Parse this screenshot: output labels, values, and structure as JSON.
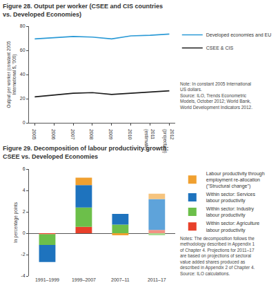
{
  "chart_data": [
    {
      "type": "line",
      "title": "Figure 28. Output per worker (CSEE and CIS countries vs. Developed Economies)",
      "y_label": "Output per worker (constant 2005 International $, '000)",
      "categories": [
        "2005",
        "2006",
        "2007",
        "2008",
        "2009",
        "2010",
        "2011 (estimate)",
        "2012 (projection)"
      ],
      "series": [
        {
          "name": "Developed economies and EU",
          "color": "#2b9ad6",
          "values": [
            69.5,
            70.5,
            71.5,
            71,
            69.5,
            72,
            72.5,
            73.5
          ]
        },
        {
          "name": "CSEE & CIS",
          "color": "#1c1c1c",
          "values": [
            21.5,
            23,
            24.5,
            25,
            23.5,
            24.5,
            25.5,
            26.5
          ]
        }
      ],
      "ylim": [
        0,
        80
      ],
      "yticks": [
        0,
        20,
        40,
        60,
        80
      ],
      "grid": false,
      "legend": "top right",
      "annotations": [
        "Note: In constant 2005 International US dollars.",
        "Source: ILO, Trends Econometric Models, October 2012; World Bank, World Development Indicators 2012."
      ]
    },
    {
      "type": "bar",
      "stacked": true,
      "title": "Figure 29. Decomposition of labour productivity growth: CSEE vs. Developed Economies",
      "y_label": "In percentage points",
      "categories": [
        "1991–1999",
        "1999–2007",
        "2007–11",
        "2011–17"
      ],
      "series": [
        {
          "name": "Within sector: Agriculture labour productivity",
          "colors": [
            "#e8402a",
            "#e8402a",
            "#e8402a",
            "#f29283"
          ],
          "values": [
            -0.1,
            0.6,
            0,
            0.3
          ]
        },
        {
          "name": "Within sector: Industry labour productivity",
          "colors": [
            "#6cbf4a",
            "#6cbf4a",
            "#6cbf4a",
            "#a9db93"
          ],
          "values": [
            -1.0,
            1.8,
            0.8,
            -0.2
          ]
        },
        {
          "name": "Within sector: Services labour productivity",
          "colors": [
            "#1e73be",
            "#1e73be",
            "#1e73be",
            "#5ea3da"
          ],
          "values": [
            -1.6,
            2.1,
            1.0,
            2.9
          ]
        },
        {
          "name": "Labour productivity through employment re-allocation (\"Structural change\")",
          "colors": [
            "#f0a030",
            "#f0a030",
            "#f0a030",
            "#f6c47e"
          ],
          "values": [
            0,
            0.7,
            -0.2,
            0.5
          ]
        }
      ],
      "ylim": [
        -4,
        6
      ],
      "yticks": [
        -4,
        -2,
        0,
        2,
        4,
        6
      ],
      "grid": false,
      "legend": "top right",
      "annotations": [
        "Notes: The decomposition follows the methodology described in Appendix 1 of Chapter 4. Projections for 2011–17 are based on projections of sectoral value added shares produced as described in Appendix 2 of Chapter 4.",
        "Source: ILO calculations."
      ]
    }
  ]
}
